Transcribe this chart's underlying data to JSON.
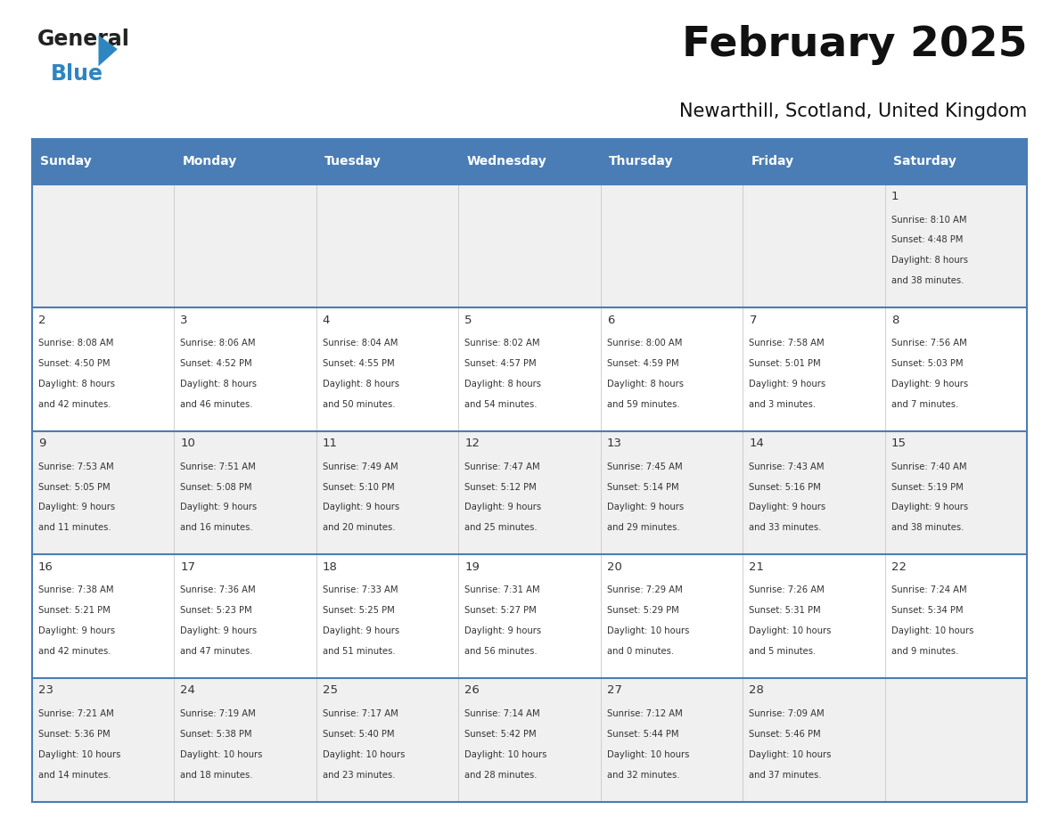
{
  "title": "February 2025",
  "subtitle": "Newarthill, Scotland, United Kingdom",
  "header_color": "#4a7db5",
  "header_text_color": "#ffffff",
  "day_names": [
    "Sunday",
    "Monday",
    "Tuesday",
    "Wednesday",
    "Thursday",
    "Friday",
    "Saturday"
  ],
  "bg_color": "#ffffff",
  "cell_bg_row0": "#f0f0f0",
  "cell_bg_row1": "#ffffff",
  "cell_bg_row2": "#f0f0f0",
  "cell_bg_row3": "#ffffff",
  "cell_bg_row4": "#f0f0f0",
  "border_color": "#4a7db5",
  "text_color": "#333333",
  "logo_general_color": "#222222",
  "logo_blue_color": "#2e86c1",
  "logo_triangle_color": "#2e86c1",
  "days": [
    {
      "day": 1,
      "col": 6,
      "row": 0,
      "sunrise": "8:10 AM",
      "sunset": "4:48 PM",
      "daylight": "8 hours and 38 minutes."
    },
    {
      "day": 2,
      "col": 0,
      "row": 1,
      "sunrise": "8:08 AM",
      "sunset": "4:50 PM",
      "daylight": "8 hours and 42 minutes."
    },
    {
      "day": 3,
      "col": 1,
      "row": 1,
      "sunrise": "8:06 AM",
      "sunset": "4:52 PM",
      "daylight": "8 hours and 46 minutes."
    },
    {
      "day": 4,
      "col": 2,
      "row": 1,
      "sunrise": "8:04 AM",
      "sunset": "4:55 PM",
      "daylight": "8 hours and 50 minutes."
    },
    {
      "day": 5,
      "col": 3,
      "row": 1,
      "sunrise": "8:02 AM",
      "sunset": "4:57 PM",
      "daylight": "8 hours and 54 minutes."
    },
    {
      "day": 6,
      "col": 4,
      "row": 1,
      "sunrise": "8:00 AM",
      "sunset": "4:59 PM",
      "daylight": "8 hours and 59 minutes."
    },
    {
      "day": 7,
      "col": 5,
      "row": 1,
      "sunrise": "7:58 AM",
      "sunset": "5:01 PM",
      "daylight": "9 hours and 3 minutes."
    },
    {
      "day": 8,
      "col": 6,
      "row": 1,
      "sunrise": "7:56 AM",
      "sunset": "5:03 PM",
      "daylight": "9 hours and 7 minutes."
    },
    {
      "day": 9,
      "col": 0,
      "row": 2,
      "sunrise": "7:53 AM",
      "sunset": "5:05 PM",
      "daylight": "9 hours and 11 minutes."
    },
    {
      "day": 10,
      "col": 1,
      "row": 2,
      "sunrise": "7:51 AM",
      "sunset": "5:08 PM",
      "daylight": "9 hours and 16 minutes."
    },
    {
      "day": 11,
      "col": 2,
      "row": 2,
      "sunrise": "7:49 AM",
      "sunset": "5:10 PM",
      "daylight": "9 hours and 20 minutes."
    },
    {
      "day": 12,
      "col": 3,
      "row": 2,
      "sunrise": "7:47 AM",
      "sunset": "5:12 PM",
      "daylight": "9 hours and 25 minutes."
    },
    {
      "day": 13,
      "col": 4,
      "row": 2,
      "sunrise": "7:45 AM",
      "sunset": "5:14 PM",
      "daylight": "9 hours and 29 minutes."
    },
    {
      "day": 14,
      "col": 5,
      "row": 2,
      "sunrise": "7:43 AM",
      "sunset": "5:16 PM",
      "daylight": "9 hours and 33 minutes."
    },
    {
      "day": 15,
      "col": 6,
      "row": 2,
      "sunrise": "7:40 AM",
      "sunset": "5:19 PM",
      "daylight": "9 hours and 38 minutes."
    },
    {
      "day": 16,
      "col": 0,
      "row": 3,
      "sunrise": "7:38 AM",
      "sunset": "5:21 PM",
      "daylight": "9 hours and 42 minutes."
    },
    {
      "day": 17,
      "col": 1,
      "row": 3,
      "sunrise": "7:36 AM",
      "sunset": "5:23 PM",
      "daylight": "9 hours and 47 minutes."
    },
    {
      "day": 18,
      "col": 2,
      "row": 3,
      "sunrise": "7:33 AM",
      "sunset": "5:25 PM",
      "daylight": "9 hours and 51 minutes."
    },
    {
      "day": 19,
      "col": 3,
      "row": 3,
      "sunrise": "7:31 AM",
      "sunset": "5:27 PM",
      "daylight": "9 hours and 56 minutes."
    },
    {
      "day": 20,
      "col": 4,
      "row": 3,
      "sunrise": "7:29 AM",
      "sunset": "5:29 PM",
      "daylight": "10 hours and 0 minutes."
    },
    {
      "day": 21,
      "col": 5,
      "row": 3,
      "sunrise": "7:26 AM",
      "sunset": "5:31 PM",
      "daylight": "10 hours and 5 minutes."
    },
    {
      "day": 22,
      "col": 6,
      "row": 3,
      "sunrise": "7:24 AM",
      "sunset": "5:34 PM",
      "daylight": "10 hours and 9 minutes."
    },
    {
      "day": 23,
      "col": 0,
      "row": 4,
      "sunrise": "7:21 AM",
      "sunset": "5:36 PM",
      "daylight": "10 hours and 14 minutes."
    },
    {
      "day": 24,
      "col": 1,
      "row": 4,
      "sunrise": "7:19 AM",
      "sunset": "5:38 PM",
      "daylight": "10 hours and 18 minutes."
    },
    {
      "day": 25,
      "col": 2,
      "row": 4,
      "sunrise": "7:17 AM",
      "sunset": "5:40 PM",
      "daylight": "10 hours and 23 minutes."
    },
    {
      "day": 26,
      "col": 3,
      "row": 4,
      "sunrise": "7:14 AM",
      "sunset": "5:42 PM",
      "daylight": "10 hours and 28 minutes."
    },
    {
      "day": 27,
      "col": 4,
      "row": 4,
      "sunrise": "7:12 AM",
      "sunset": "5:44 PM",
      "daylight": "10 hours and 32 minutes."
    },
    {
      "day": 28,
      "col": 5,
      "row": 4,
      "sunrise": "7:09 AM",
      "sunset": "5:46 PM",
      "daylight": "10 hours and 37 minutes."
    }
  ]
}
